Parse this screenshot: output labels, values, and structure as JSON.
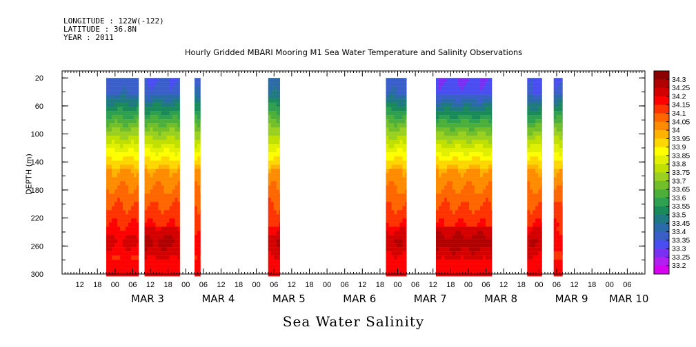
{
  "header": {
    "longitude": "LONGITUDE : 122W(-122)",
    "latitude": "LATITUDE : 36.8N",
    "year": "YEAR : 2011"
  },
  "chart_data": {
    "type": "heatmap",
    "title": "Hourly Gridded MBARI Mooring M1 Sea Water Temperature and Salinity Observations",
    "xlabel": "Sea Water Salinity",
    "ylabel": "DEPTH (m)",
    "y_axis": {
      "range": [
        300,
        10
      ],
      "ticks": [
        20,
        60,
        100,
        140,
        180,
        220,
        260,
        300
      ],
      "inverted": true
    },
    "x_axis": {
      "start": "2011-03-02 06:00",
      "end": "2011-03-10 12:00",
      "hour_tick_labels": [
        "12",
        "18",
        "00",
        "06",
        "12",
        "18",
        "00",
        "06",
        "12",
        "18",
        "00",
        "06",
        "12",
        "18",
        "00",
        "06",
        "12",
        "18",
        "00",
        "06",
        "12",
        "18",
        "00",
        "06",
        "12",
        "18",
        "00",
        "06",
        "12",
        "18",
        "00",
        "06"
      ],
      "day_labels": [
        "MAR  3",
        "MAR  4",
        "MAR  5",
        "MAR  6",
        "MAR  7",
        "MAR  8",
        "MAR  9",
        "MAR 10"
      ]
    },
    "colorbar": {
      "levels": [
        34.3,
        34.25,
        34.2,
        34.15,
        34.1,
        34.05,
        34,
        33.95,
        33.9,
        33.85,
        33.8,
        33.75,
        33.7,
        33.65,
        33.6,
        33.55,
        33.5,
        33.45,
        33.4,
        33.35,
        33.3,
        33.25,
        33.2
      ],
      "labels": [
        "34.3",
        "34.25",
        "34.2",
        "34.15",
        "34.1",
        "34.05",
        "34",
        "33.95",
        "33.9",
        "33.85",
        "33.8",
        "33.75",
        "33.7",
        "33.65",
        "33.6",
        "33.55",
        "33.5",
        "33.45",
        "33.4",
        "33.35",
        "33.3",
        "33.25",
        "33.2"
      ],
      "colors": [
        "#8b0000",
        "#b00000",
        "#d40000",
        "#ff0000",
        "#ff3300",
        "#ff6600",
        "#ff8c00",
        "#ffb300",
        "#ffd700",
        "#ffff00",
        "#e0f000",
        "#c0e000",
        "#9ad020",
        "#72bf2a",
        "#4caf3a",
        "#2ea050",
        "#1a8a5a",
        "#1e7a80",
        "#2a6aa8",
        "#3a5fc8",
        "#4a4ef0",
        "#7a30f0",
        "#b020f0",
        "#d800f0"
      ]
    },
    "segments": [
      {
        "start": "2011-03-02 21:00",
        "end": "2011-03-03 08:00",
        "surface": 33.37,
        "deep_core": 34.22
      },
      {
        "start": "2011-03-03 10:00",
        "end": "2011-03-03 22:00",
        "surface": 33.35,
        "deep_core": 34.27
      },
      {
        "start": "2011-03-04 03:00",
        "end": "2011-03-04 05:00",
        "surface": 33.37,
        "deep_core": 34.2
      },
      {
        "start": "2011-03-05 04:00",
        "end": "2011-03-05 08:00",
        "surface": 33.42,
        "deep_core": 34.25
      },
      {
        "start": "2011-03-06 20:00",
        "end": "2011-03-07 03:00",
        "surface": 33.37,
        "deep_core": 34.25
      },
      {
        "start": "2011-03-07 13:00",
        "end": "2011-03-08 08:00",
        "surface": 33.3,
        "deep_core": 34.28
      },
      {
        "start": "2011-03-08 20:00",
        "end": "2011-03-09 01:00",
        "surface": 33.33,
        "deep_core": 34.25
      },
      {
        "start": "2011-03-09 05:00",
        "end": "2011-03-09 08:00",
        "surface": 33.35,
        "deep_core": 34.2
      }
    ]
  }
}
